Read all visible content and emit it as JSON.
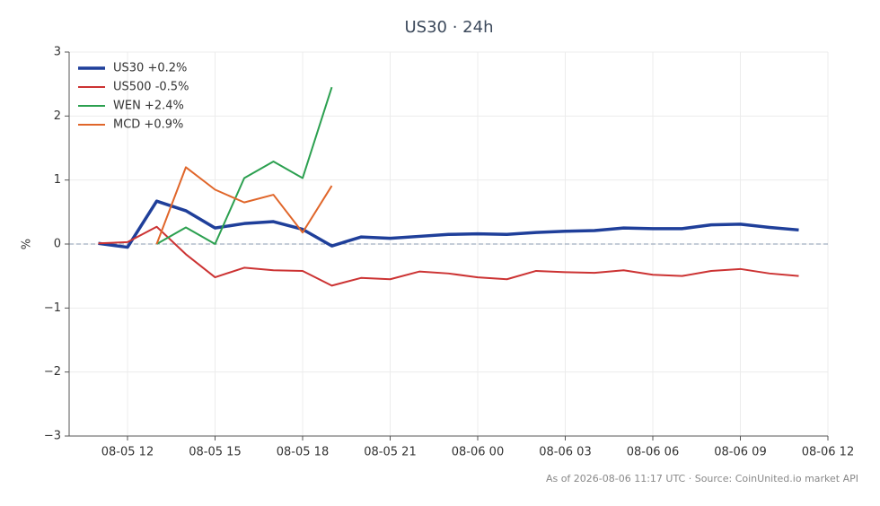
{
  "chart_data": {
    "type": "line",
    "title": "US30 · 24h",
    "ylabel": "%",
    "footnote": "As of 2026-08-06 11:17 UTC · Source: CoinUnited.io market API",
    "x": [
      "08-05 11",
      "08-05 12",
      "08-05 13",
      "08-05 14",
      "08-05 15",
      "08-05 16",
      "08-05 17",
      "08-05 18",
      "08-05 19",
      "08-05 20",
      "08-05 21",
      "08-05 22",
      "08-05 23",
      "08-06 00",
      "08-06 01",
      "08-06 02",
      "08-06 03",
      "08-06 04",
      "08-06 05",
      "08-06 06",
      "08-06 07",
      "08-06 08",
      "08-06 09",
      "08-06 10",
      "08-06 11"
    ],
    "series": [
      {
        "name": "US30 +0.2%",
        "color": "#1f3f9a",
        "width": 3.5,
        "values": [
          0.01,
          -0.05,
          0.67,
          0.52,
          0.25,
          0.32,
          0.35,
          0.23,
          -0.03,
          0.11,
          0.09,
          0.12,
          0.15,
          0.16,
          0.15,
          0.18,
          0.2,
          0.21,
          0.25,
          0.24,
          0.24,
          0.3,
          0.31,
          0.26,
          0.22
        ]
      },
      {
        "name": "US500 -0.5%",
        "color": "#cc3333",
        "width": 2,
        "values": [
          0.01,
          0.03,
          0.27,
          -0.16,
          -0.52,
          -0.37,
          -0.41,
          -0.42,
          -0.65,
          -0.53,
          -0.55,
          -0.43,
          -0.46,
          -0.52,
          -0.55,
          -0.42,
          -0.44,
          -0.45,
          -0.41,
          -0.48,
          -0.5,
          -0.42,
          -0.39,
          -0.46,
          -0.5
        ]
      },
      {
        "name": "WEN +2.4%",
        "color": "#2ca050",
        "width": 2,
        "values": [
          null,
          null,
          0,
          0.26,
          0,
          1.03,
          1.29,
          1.03,
          2.45,
          null,
          null,
          null,
          null,
          null,
          null,
          null,
          null,
          null,
          null,
          null,
          null,
          null,
          null,
          null,
          null
        ]
      },
      {
        "name": "MCD +0.9%",
        "color": "#e0662a",
        "width": 2,
        "values": [
          null,
          null,
          0,
          1.2,
          0.85,
          0.65,
          0.77,
          0.18,
          0.91,
          null,
          null,
          null,
          null,
          null,
          null,
          null,
          null,
          null,
          null,
          null,
          null,
          null,
          null,
          null,
          null
        ]
      }
    ],
    "xlim": [
      "08-05 10",
      "08-06 12"
    ],
    "xticks": [
      "08-05 12",
      "08-05 15",
      "08-05 18",
      "08-05 21",
      "08-06 00",
      "08-06 03",
      "08-06 06",
      "08-06 09",
      "08-06 12"
    ],
    "ylim": [
      -3,
      3
    ],
    "yticks": [
      {
        "value": -3,
        "label": "−3"
      },
      {
        "value": -2,
        "label": "−2"
      },
      {
        "value": -1,
        "label": "−1"
      },
      0,
      1,
      2,
      3
    ],
    "grid": true,
    "zero_line": true,
    "legend": "upper-left"
  }
}
